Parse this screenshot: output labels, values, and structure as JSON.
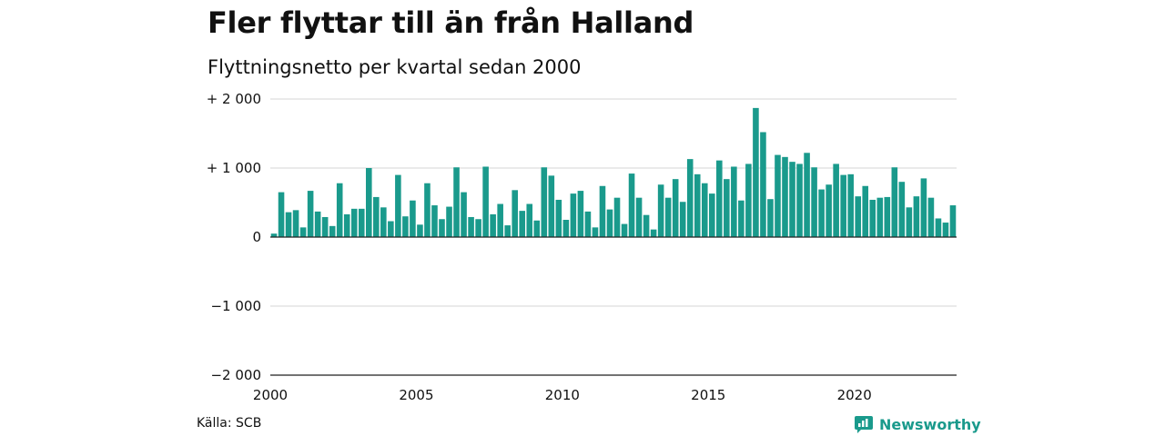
{
  "title": "Fler flyttar till än från Halland",
  "subtitle": "Flyttningsnetto per kvartal sedan 2000",
  "source": "Källa: SCB",
  "brand": {
    "name": "Newsworthy",
    "icon": "newsworthy-logo-icon",
    "color": "#1a9a8c"
  },
  "colors": {
    "bar": "#1a9a8c",
    "grid": "#dddddd",
    "axis": "#222222"
  },
  "chart_data": {
    "type": "bar",
    "title": "",
    "xlabel": "",
    "ylabel": "",
    "grid": true,
    "legend": "none",
    "ylim": [
      -2000,
      2000
    ],
    "y_ticks": [
      {
        "value": 2000,
        "label": "+ 2 000"
      },
      {
        "value": 1000,
        "label": "+ 1 000"
      },
      {
        "value": 0,
        "label": "0"
      },
      {
        "value": -1000,
        "label": "−1 000"
      },
      {
        "value": -2000,
        "label": "−2 000"
      }
    ],
    "x_ticks": [
      {
        "value": 2000,
        "label": "2000"
      },
      {
        "value": 2005,
        "label": "2005"
      },
      {
        "value": 2010,
        "label": "2010"
      },
      {
        "value": 2015,
        "label": "2015"
      },
      {
        "value": 2020,
        "label": "2020"
      }
    ],
    "start_year": 2000,
    "end_year": 2023.5,
    "categories": [
      "2000 Q1",
      "2000 Q2",
      "2000 Q3",
      "2000 Q4",
      "2001 Q1",
      "2001 Q2",
      "2001 Q3",
      "2001 Q4",
      "2002 Q1",
      "2002 Q2",
      "2002 Q3",
      "2002 Q4",
      "2003 Q1",
      "2003 Q2",
      "2003 Q3",
      "2003 Q4",
      "2004 Q1",
      "2004 Q2",
      "2004 Q3",
      "2004 Q4",
      "2005 Q1",
      "2005 Q2",
      "2005 Q3",
      "2005 Q4",
      "2006 Q1",
      "2006 Q2",
      "2006 Q3",
      "2006 Q4",
      "2007 Q1",
      "2007 Q2",
      "2007 Q3",
      "2007 Q4",
      "2008 Q1",
      "2008 Q2",
      "2008 Q3",
      "2008 Q4",
      "2009 Q1",
      "2009 Q2",
      "2009 Q3",
      "2009 Q4",
      "2010 Q1",
      "2010 Q2",
      "2010 Q3",
      "2010 Q4",
      "2011 Q1",
      "2011 Q2",
      "2011 Q3",
      "2011 Q4",
      "2012 Q1",
      "2012 Q2",
      "2012 Q3",
      "2012 Q4",
      "2013 Q1",
      "2013 Q2",
      "2013 Q3",
      "2013 Q4",
      "2014 Q1",
      "2014 Q2",
      "2014 Q3",
      "2014 Q4",
      "2015 Q1",
      "2015 Q2",
      "2015 Q3",
      "2015 Q4",
      "2016 Q1",
      "2016 Q2",
      "2016 Q3",
      "2016 Q4",
      "2017 Q1",
      "2017 Q2",
      "2017 Q3",
      "2017 Q4",
      "2018 Q1",
      "2018 Q2",
      "2018 Q3",
      "2018 Q4",
      "2019 Q1",
      "2019 Q2",
      "2019 Q3",
      "2019 Q4",
      "2020 Q1",
      "2020 Q2",
      "2020 Q3",
      "2020 Q4",
      "2021 Q1",
      "2021 Q2",
      "2021 Q3",
      "2021 Q4",
      "2022 Q1",
      "2022 Q2",
      "2022 Q3",
      "2022 Q4",
      "2023 Q1",
      "2023 Q2"
    ],
    "values": [
      50,
      650,
      360,
      390,
      140,
      670,
      370,
      290,
      160,
      780,
      330,
      410,
      410,
      1000,
      580,
      430,
      230,
      900,
      300,
      530,
      180,
      780,
      460,
      260,
      440,
      1010,
      650,
      290,
      260,
      1020,
      330,
      480,
      170,
      680,
      380,
      480,
      240,
      1010,
      890,
      540,
      250,
      630,
      670,
      370,
      140,
      740,
      400,
      570,
      190,
      920,
      570,
      320,
      110,
      760,
      570,
      840,
      510,
      1130,
      910,
      780,
      630,
      1110,
      840,
      1020,
      530,
      1060,
      1870,
      1520,
      550,
      1190,
      1160,
      1090,
      1060,
      1220,
      1010,
      690,
      760,
      1060,
      900,
      910,
      590,
      740,
      540,
      570,
      580,
      1010,
      800,
      430,
      590,
      850,
      570,
      270,
      210,
      460
    ]
  }
}
